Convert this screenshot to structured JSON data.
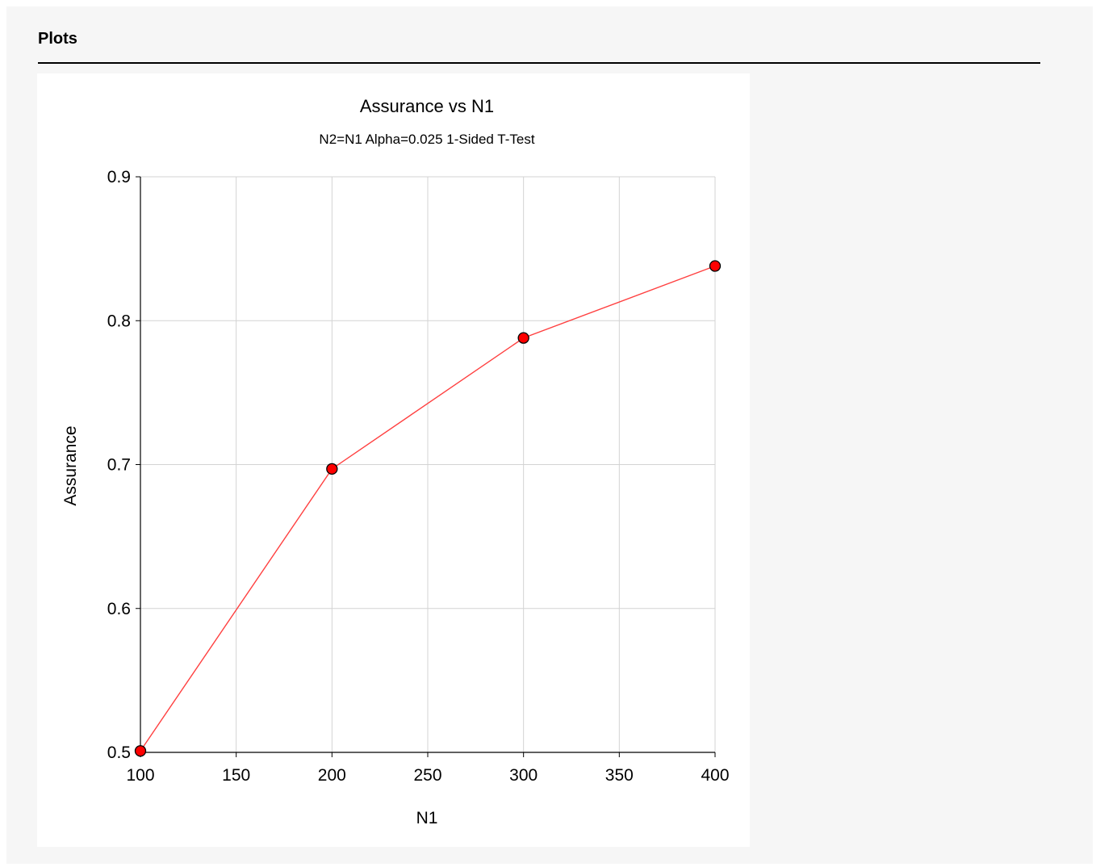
{
  "section": {
    "title": "Plots"
  },
  "chart_data": {
    "type": "line",
    "title": "Assurance vs N1",
    "subtitle": "N2=N1 Alpha=0.025 1-Sided T-Test",
    "xlabel": "N1",
    "ylabel": "Assurance",
    "xlim": [
      100,
      400
    ],
    "ylim": [
      0.5,
      0.9
    ],
    "x_ticks": [
      100,
      150,
      200,
      250,
      300,
      350,
      400
    ],
    "y_ticks": [
      0.5,
      0.6,
      0.7,
      0.8,
      0.9
    ],
    "grid": true,
    "legend": "none",
    "series": [
      {
        "x": [
          100,
          200,
          300,
          400
        ],
        "y": [
          0.501,
          0.697,
          0.788,
          0.838
        ],
        "line_color": "#ff4040",
        "marker_color": "#ff0000",
        "marker_edge": "#000000"
      }
    ]
  }
}
